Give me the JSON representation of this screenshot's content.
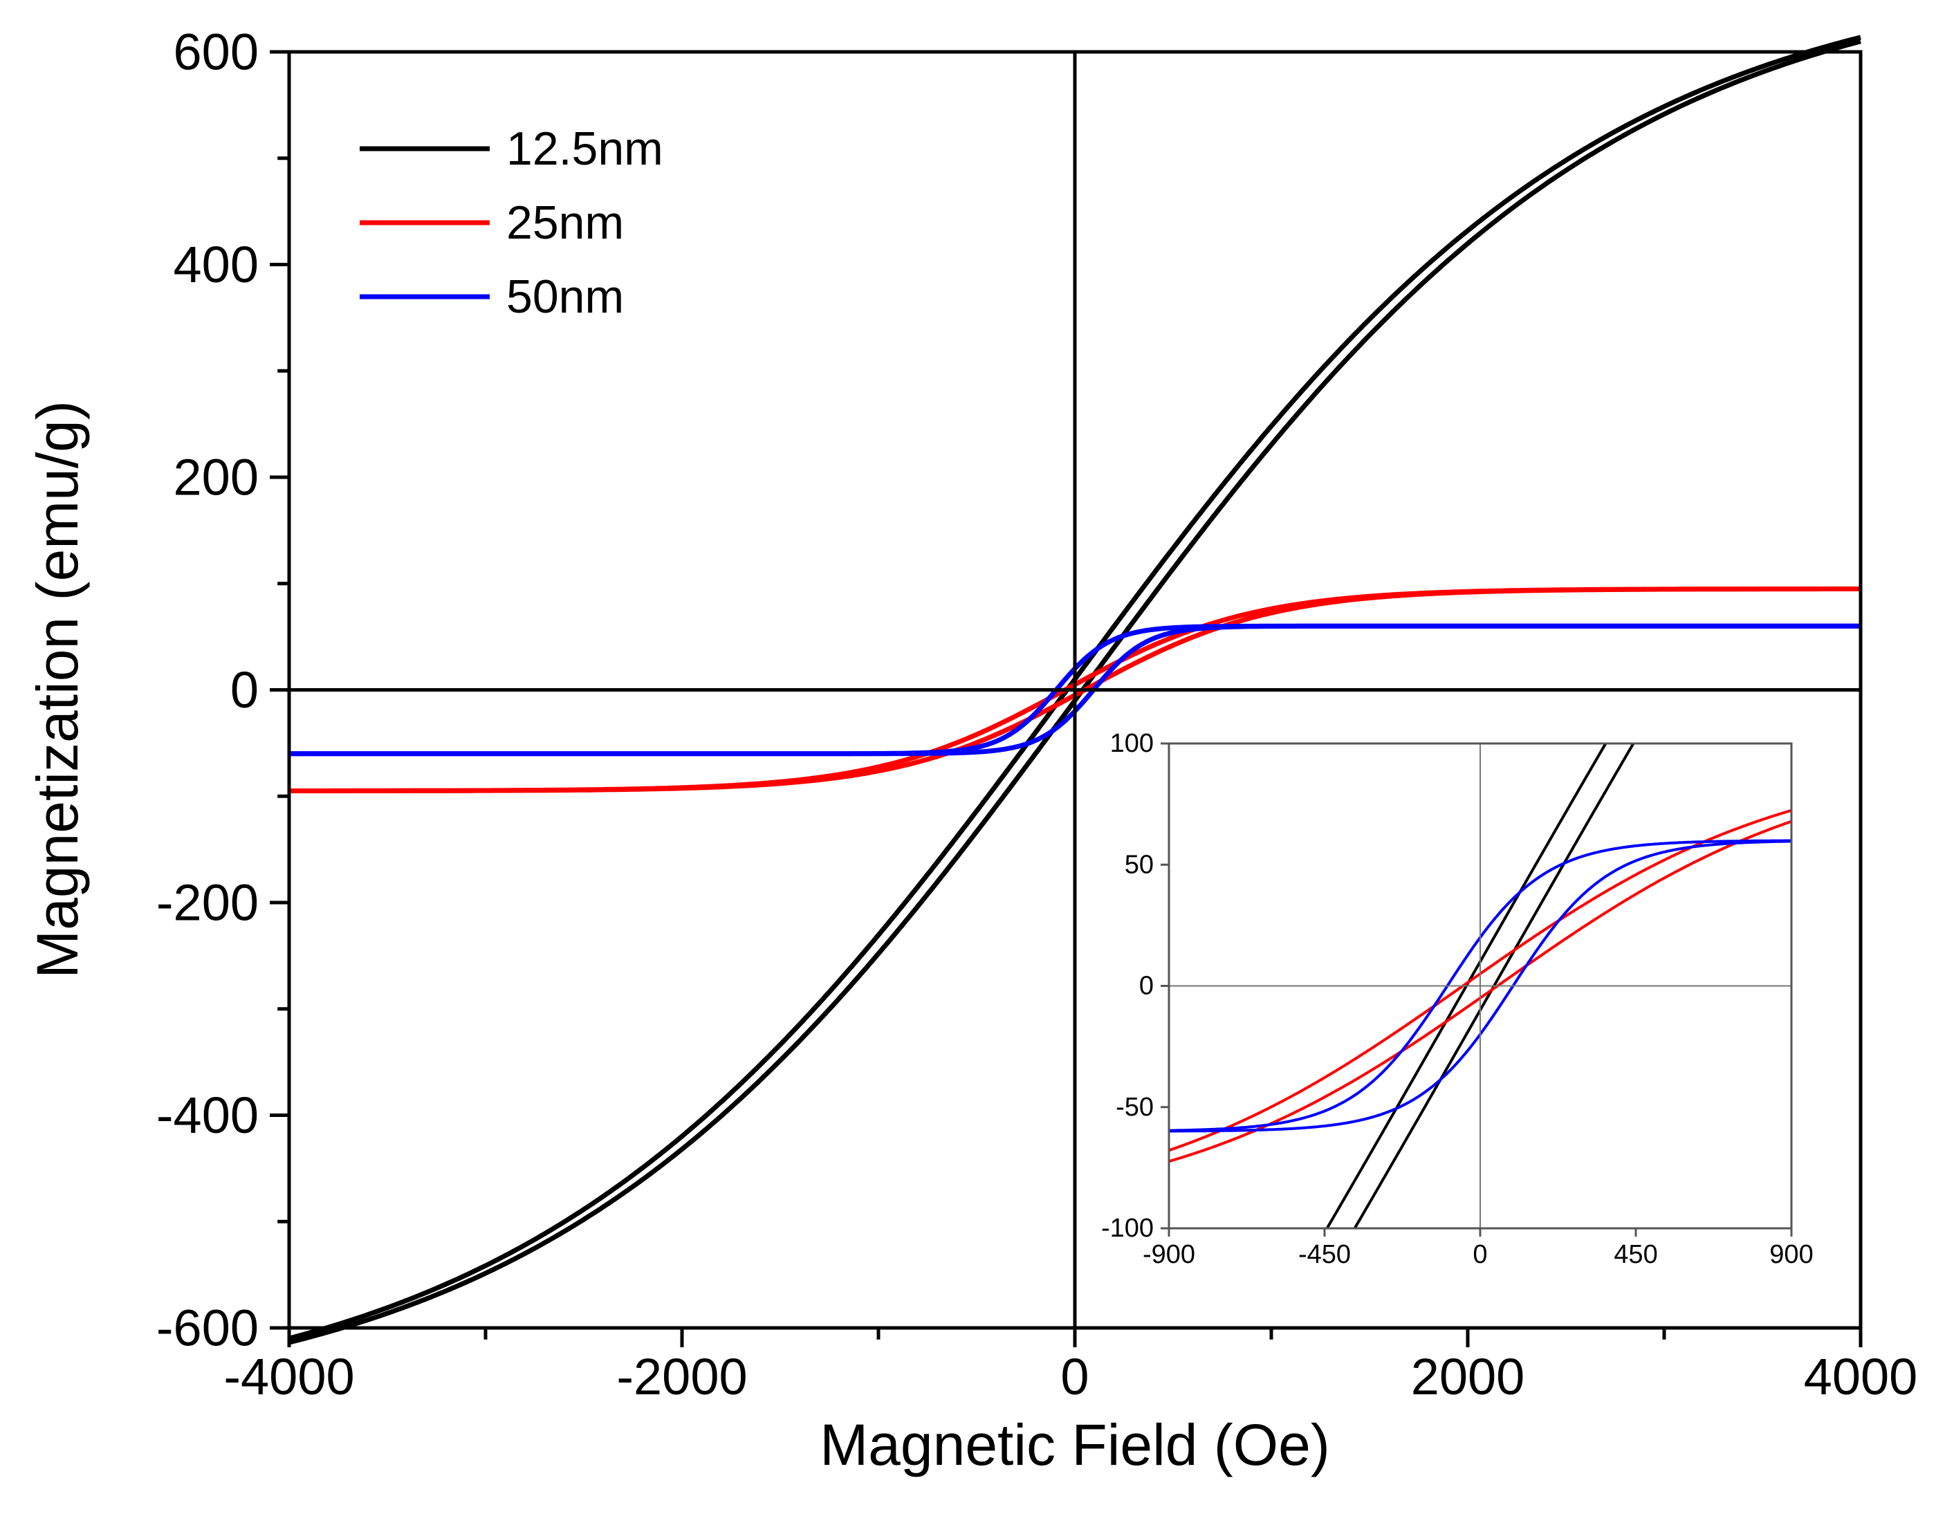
{
  "chart_data": [
    {
      "type": "line",
      "title": "",
      "xlabel": "Magnetic Field (Oe)",
      "ylabel": "Magnetization (emu/g)",
      "xlim": [
        -4000,
        4000
      ],
      "ylim": [
        -600,
        600
      ],
      "xticks": [
        -4000,
        -2000,
        0,
        2000,
        4000
      ],
      "yticks": [
        -600,
        -400,
        -200,
        0,
        200,
        400,
        600
      ],
      "xtick_labels": [
        "-4000",
        "-2000",
        "0",
        "2000",
        "4000"
      ],
      "ytick_labels": [
        "-600",
        "-400",
        "-200",
        "0",
        "200",
        "400",
        "600"
      ],
      "grid": false,
      "zero_lines": true,
      "legend_position": "top-left",
      "series": [
        {
          "name": "12.5nm",
          "color": "#000000",
          "ms": 680,
          "hc": 40,
          "mr": 10,
          "x_sample": [
            -4000,
            -3000,
            -2000,
            -1000,
            -500,
            0,
            500,
            1000,
            2000,
            3000,
            4000
          ],
          "y_sample": [
            -552,
            -495,
            -395,
            -245,
            -140,
            -10,
            140,
            245,
            395,
            495,
            552
          ]
        },
        {
          "name": "25nm",
          "color": "#ff0000",
          "ms": 95,
          "hc": 50,
          "mr": 5,
          "x_sample": [
            -4000,
            -3000,
            -2000,
            -1000,
            -500,
            0,
            500,
            1000,
            2000,
            3000,
            4000
          ],
          "y_sample": [
            -87,
            -93,
            -95,
            -82,
            -50,
            0,
            50,
            82,
            95,
            93,
            87
          ]
        },
        {
          "name": "50nm",
          "color": "#0000ff",
          "ms": 60,
          "hc": 95,
          "mr": 20,
          "x_sample": [
            -4000,
            -3000,
            -2000,
            -1000,
            -500,
            0,
            500,
            1000,
            2000,
            3000,
            4000
          ],
          "y_sample": [
            -60,
            -60,
            -60,
            -57,
            -48,
            0,
            48,
            57,
            60,
            60,
            60
          ]
        }
      ]
    },
    {
      "type": "line",
      "title": "",
      "xlabel": "",
      "ylabel": "",
      "xlim": [
        -900,
        900
      ],
      "ylim": [
        -100,
        100
      ],
      "xticks": [
        -900,
        -450,
        0,
        450,
        900
      ],
      "yticks": [
        -100,
        -50,
        0,
        50,
        100
      ],
      "xtick_labels": [
        "-900",
        "-450",
        "0",
        "450",
        "900"
      ],
      "ytick_labels": [
        "-100",
        "-50",
        "0",
        "50",
        "100"
      ],
      "grid": false,
      "zero_lines": true,
      "legend_position": "none",
      "placement": "inset-bottom-right",
      "series": [
        {
          "color": "#000000",
          "x_sample": [
            -380,
            0,
            380
          ],
          "y_sample": [
            -100,
            5,
            100
          ]
        },
        {
          "color": "#ff0000",
          "x_sample": [
            -900,
            0,
            900
          ],
          "y_sample": [
            -68,
            0,
            68
          ]
        },
        {
          "color": "#0000ff",
          "x_sample": [
            -900,
            -450,
            0,
            450,
            900
          ],
          "y_sample": [
            -55,
            -45,
            0,
            45,
            55
          ]
        }
      ]
    }
  ]
}
